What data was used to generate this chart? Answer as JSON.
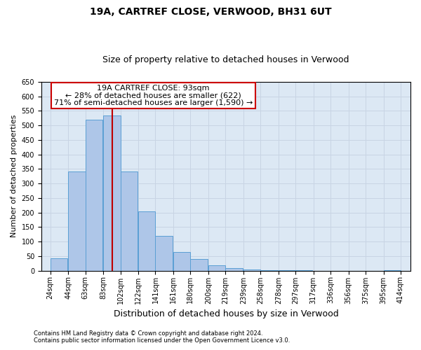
{
  "title1": "19A, CARTREF CLOSE, VERWOOD, BH31 6UT",
  "title2": "Size of property relative to detached houses in Verwood",
  "xlabel": "Distribution of detached houses by size in Verwood",
  "ylabel": "Number of detached properties",
  "footnote1": "Contains HM Land Registry data © Crown copyright and database right 2024.",
  "footnote2": "Contains public sector information licensed under the Open Government Licence v3.0.",
  "bar_left_edges": [
    24,
    44,
    63,
    83,
    102,
    122,
    141,
    161,
    180,
    200,
    219,
    239,
    258,
    278,
    297,
    317,
    336,
    356,
    375,
    395
  ],
  "bar_widths": [
    19,
    19,
    19,
    19,
    19,
    19,
    19,
    19,
    19,
    19,
    19,
    19,
    19,
    19,
    19,
    19,
    19,
    19,
    19,
    19
  ],
  "bar_heights": [
    42,
    340,
    520,
    535,
    340,
    205,
    120,
    65,
    40,
    18,
    10,
    4,
    2,
    1,
    1,
    0,
    0,
    0,
    0,
    2
  ],
  "bar_color": "#aec6e8",
  "bar_edge_color": "#5a9fd4",
  "property_size": 93,
  "property_line_color": "#c00000",
  "annotation_line1": "19A CARTREF CLOSE: 93sqm",
  "annotation_line2": "← 28% of detached houses are smaller (622)",
  "annotation_line3": "71% of semi-detached houses are larger (1,590) →",
  "annotation_box_edge_color": "#cc0000",
  "ylim_max": 650,
  "yticks": [
    0,
    50,
    100,
    150,
    200,
    250,
    300,
    350,
    400,
    450,
    500,
    550,
    600,
    650
  ],
  "xtick_labels": [
    "24sqm",
    "44sqm",
    "63sqm",
    "83sqm",
    "102sqm",
    "122sqm",
    "141sqm",
    "161sqm",
    "180sqm",
    "200sqm",
    "219sqm",
    "239sqm",
    "258sqm",
    "278sqm",
    "297sqm",
    "317sqm",
    "336sqm",
    "356sqm",
    "375sqm",
    "395sqm",
    "414sqm"
  ],
  "xtick_positions": [
    24,
    44,
    63,
    83,
    102,
    122,
    141,
    161,
    180,
    200,
    219,
    239,
    258,
    278,
    297,
    317,
    336,
    356,
    375,
    395,
    414
  ],
  "grid_color": "#c8d4e4",
  "plot_bg_color": "#dce8f4",
  "title_fontsize": 10,
  "subtitle_fontsize": 9,
  "tick_fontsize": 7,
  "ylabel_fontsize": 8,
  "xlabel_fontsize": 9,
  "annotation_fontsize": 8,
  "footnote_fontsize": 6
}
